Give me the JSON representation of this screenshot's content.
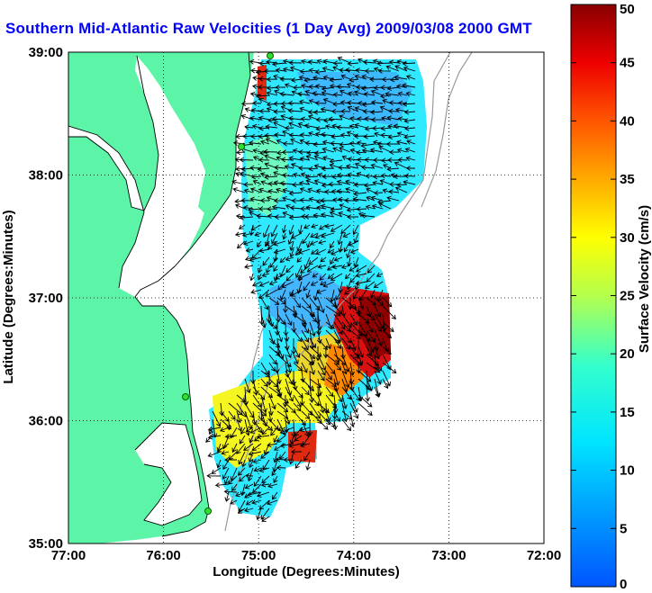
{
  "title": "Southern Mid-Atlantic Raw Velocities (1 Day Avg) 2009/03/08 2000 GMT",
  "map": {
    "xlabel": "Longitude (Degrees:Minutes)",
    "ylabel": "Latitude (Degrees:Minutes)",
    "lon_range": [
      -77,
      -72
    ],
    "lat_range": [
      35,
      39
    ],
    "lon_ticks": [
      {
        "value": -77,
        "label": "77:00"
      },
      {
        "value": -76,
        "label": "76:00"
      },
      {
        "value": -75,
        "label": "75:00"
      },
      {
        "value": -74,
        "label": "74:00"
      },
      {
        "value": -73,
        "label": "73:00"
      },
      {
        "value": -72,
        "label": "72:00"
      }
    ],
    "lat_ticks": [
      {
        "value": 35,
        "label": "35:00"
      },
      {
        "value": 36,
        "label": "36:00"
      },
      {
        "value": 37,
        "label": "37:00"
      },
      {
        "value": 38,
        "label": "38:00"
      },
      {
        "value": 39,
        "label": "39:00"
      }
    ],
    "grid": "dotted",
    "land_color": "#5cf5a8",
    "water_color": "#ffffff",
    "station_color": "#33dd33"
  },
  "colorbar": {
    "label": "Surface Velocity (cm/s)",
    "units": "cm/s",
    "range": [
      0,
      50
    ],
    "ticks": [
      0,
      5,
      10,
      15,
      20,
      25,
      30,
      35,
      40,
      45,
      50
    ],
    "colormap": "jet"
  }
}
